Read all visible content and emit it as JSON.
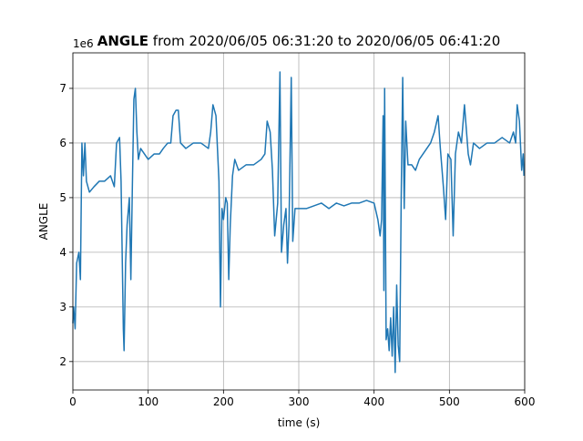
{
  "chart_data": {
    "type": "line",
    "title": {
      "name": "ANGLE",
      "rest": "from 2020/06/05 06:31:20 to 2020/06/05 06:41:20"
    },
    "x_label": "time (s)",
    "y_label": "ANGLE",
    "y_offset": "1e6",
    "xlim": [
      0,
      600
    ],
    "ylim": [
      1.48,
      7.65
    ],
    "xticks": [
      0,
      100,
      200,
      300,
      400,
      500,
      600
    ],
    "yticks": [
      2,
      3,
      4,
      5,
      6,
      7
    ],
    "grid": true,
    "x": [
      0,
      1,
      3,
      5,
      8,
      10,
      12,
      14,
      16,
      18,
      22,
      28,
      35,
      42,
      50,
      55,
      58,
      62,
      64,
      67,
      68,
      70,
      72,
      75,
      77,
      79,
      81,
      83,
      85,
      87,
      90,
      95,
      100,
      108,
      115,
      120,
      126,
      130,
      133,
      137,
      140,
      143,
      150,
      160,
      170,
      180,
      183,
      186,
      190,
      194,
      196,
      198,
      200,
      203,
      205,
      207,
      209,
      212,
      215,
      220,
      230,
      240,
      250,
      255,
      258,
      262,
      265,
      268,
      272,
      275,
      277,
      280,
      283,
      285,
      287,
      290,
      292,
      295,
      300,
      310,
      320,
      330,
      340,
      350,
      360,
      370,
      380,
      390,
      400,
      405,
      408,
      410,
      412,
      413,
      414,
      416,
      418,
      420,
      422,
      424,
      426,
      428,
      430,
      432,
      434,
      436,
      438,
      440,
      442,
      445,
      450,
      455,
      460,
      465,
      470,
      475,
      480,
      485,
      488,
      492,
      495,
      498,
      502,
      505,
      508,
      512,
      516,
      520,
      525,
      528,
      532,
      540,
      550,
      560,
      570,
      580,
      585,
      588,
      590,
      593,
      596,
      598,
      599
    ],
    "series": [
      {
        "name": "ANGLE",
        "color": "#1f77b4",
        "values": [
          2.7,
          3.0,
          2.6,
          3.8,
          4.0,
          3.5,
          6.0,
          5.4,
          6.0,
          5.3,
          5.1,
          5.2,
          5.3,
          5.3,
          5.4,
          5.2,
          6.0,
          6.1,
          5.3,
          2.6,
          2.2,
          3.8,
          4.5,
          5.0,
          3.5,
          5.2,
          6.8,
          7.0,
          6.2,
          5.7,
          5.9,
          5.8,
          5.7,
          5.8,
          5.8,
          5.9,
          6.0,
          6.0,
          6.5,
          6.6,
          6.6,
          6.0,
          5.9,
          6.0,
          6.0,
          5.9,
          6.2,
          6.7,
          6.5,
          5.3,
          3.0,
          4.8,
          4.6,
          5.0,
          4.9,
          3.5,
          4.5,
          5.4,
          5.7,
          5.5,
          5.6,
          5.6,
          5.7,
          5.8,
          6.4,
          6.2,
          5.5,
          4.3,
          4.9,
          7.3,
          4.0,
          4.5,
          4.8,
          3.8,
          4.5,
          7.2,
          4.2,
          4.8,
          4.8,
          4.8,
          4.85,
          4.9,
          4.8,
          4.9,
          4.85,
          4.9,
          4.9,
          4.95,
          4.9,
          4.6,
          4.3,
          4.6,
          6.5,
          3.3,
          7.0,
          2.4,
          2.6,
          2.2,
          2.8,
          2.1,
          3.0,
          1.8,
          3.4,
          2.3,
          2.0,
          5.0,
          7.2,
          4.8,
          6.4,
          5.6,
          5.6,
          5.5,
          5.7,
          5.8,
          5.9,
          6.0,
          6.2,
          6.5,
          5.9,
          5.2,
          4.6,
          5.8,
          5.7,
          4.3,
          5.8,
          6.2,
          6.0,
          6.7,
          5.8,
          5.6,
          6.0,
          5.9,
          6.0,
          6.0,
          6.1,
          6.0,
          6.2,
          6.0,
          6.7,
          6.4,
          5.5,
          5.8,
          5.4
        ]
      }
    ]
  }
}
